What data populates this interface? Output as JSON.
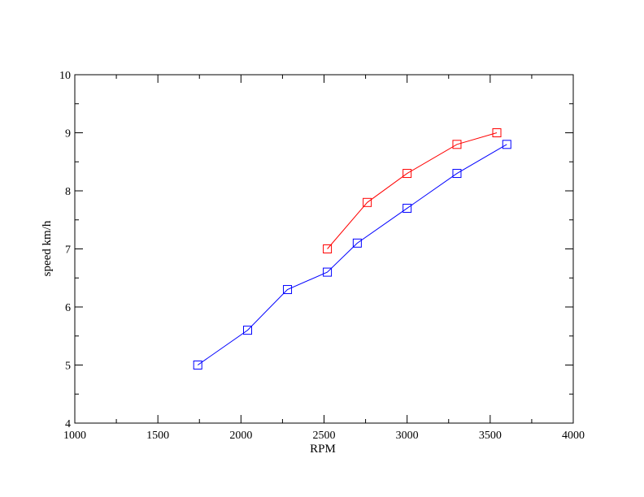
{
  "chart_data": {
    "type": "line",
    "title": "",
    "xlabel": "RPM",
    "ylabel": "speed km/h",
    "xlim": [
      1000,
      4000
    ],
    "ylim": [
      4,
      10
    ],
    "x_ticks": [
      1000,
      1500,
      2000,
      2500,
      3000,
      3500,
      4000
    ],
    "y_ticks": [
      4,
      5,
      6,
      7,
      8,
      9,
      10
    ],
    "grid": false,
    "legend": "none",
    "marker": "square",
    "series": [
      {
        "color": "#0000ff",
        "points": [
          {
            "x": 1740,
            "y": 5.0
          },
          {
            "x": 2040,
            "y": 5.6
          },
          {
            "x": 2280,
            "y": 6.3
          },
          {
            "x": 2520,
            "y": 6.6
          },
          {
            "x": 2700,
            "y": 7.1
          },
          {
            "x": 3000,
            "y": 7.7
          },
          {
            "x": 3300,
            "y": 8.3
          },
          {
            "x": 3600,
            "y": 8.8
          }
        ]
      },
      {
        "color": "#ff0000",
        "points": [
          {
            "x": 2520,
            "y": 7.0
          },
          {
            "x": 2760,
            "y": 7.8
          },
          {
            "x": 3000,
            "y": 8.3
          },
          {
            "x": 3300,
            "y": 8.8
          },
          {
            "x": 3540,
            "y": 9.0
          }
        ]
      }
    ]
  }
}
